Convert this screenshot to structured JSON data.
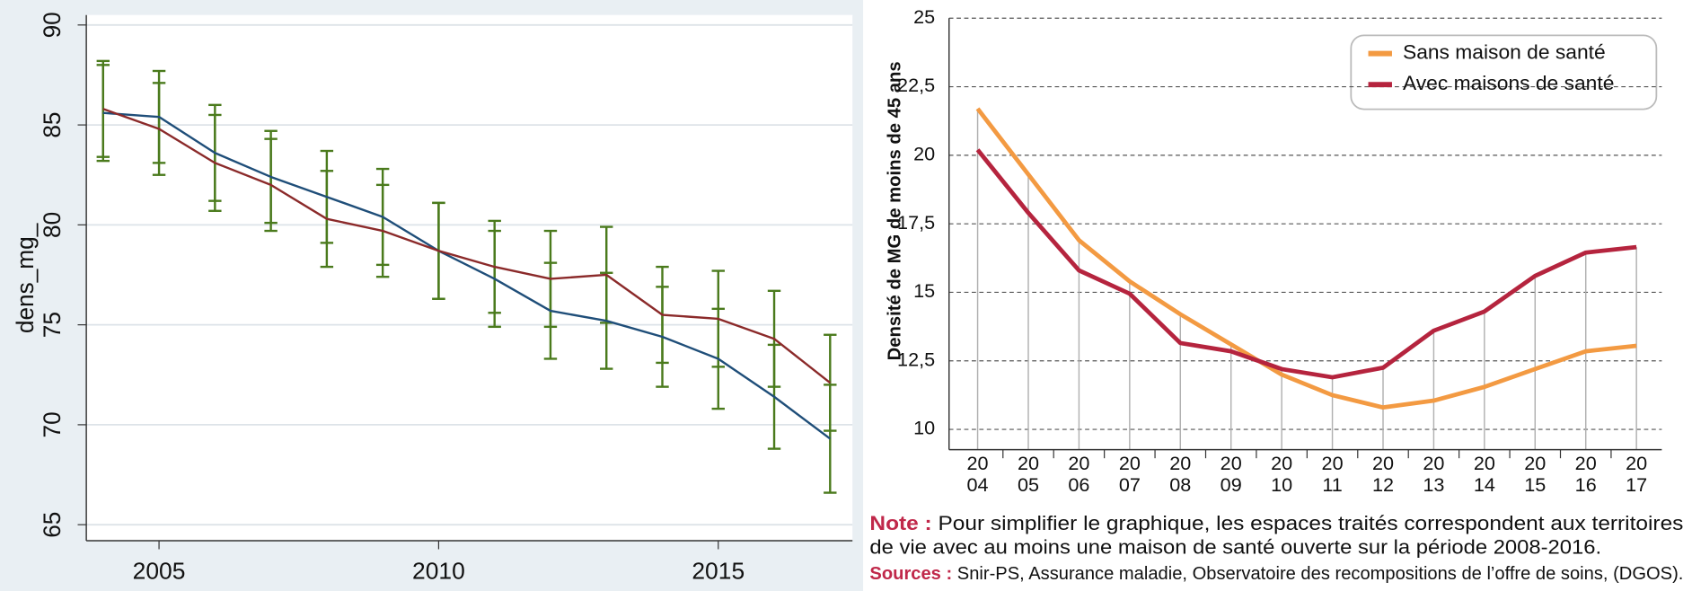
{
  "chart_data": [
    {
      "type": "line",
      "y_label": "dens_mg_",
      "x": [
        2004,
        2005,
        2006,
        2007,
        2008,
        2009,
        2010,
        2011,
        2012,
        2013,
        2014,
        2015,
        2016,
        2017
      ],
      "series": [
        {
          "color": "#1f4e79",
          "values": [
            85.6,
            85.4,
            83.6,
            82.4,
            81.4,
            80.4,
            78.7,
            77.3,
            75.7,
            75.2,
            74.4,
            73.3,
            71.4,
            69.3
          ],
          "errors": [
            2.4,
            2.3,
            2.4,
            2.3,
            2.3,
            2.4,
            2.4,
            2.4,
            2.4,
            2.4,
            2.5,
            2.5,
            2.6,
            2.7
          ]
        },
        {
          "color": "#8b2a2a",
          "values": [
            85.8,
            84.8,
            83.1,
            82.0,
            80.3,
            79.7,
            78.7,
            77.9,
            77.3,
            77.5,
            75.5,
            75.3,
            74.3,
            72.1
          ],
          "errors": [
            2.4,
            2.3,
            2.4,
            2.3,
            2.4,
            2.3,
            2.4,
            2.3,
            2.4,
            2.4,
            2.4,
            2.4,
            2.4,
            2.4
          ]
        }
      ],
      "error_color": "#4a7a1c",
      "xlim": [
        2003.7,
        2017.4
      ],
      "xticks": [
        2005,
        2010,
        2015
      ],
      "ylim": [
        64.2,
        90.5
      ],
      "yticks": [
        65,
        70,
        75,
        80,
        85,
        90
      ],
      "grid": true
    },
    {
      "type": "line",
      "y_label": "Densité de MG de moins de 45 ans",
      "categories": [
        [
          "20",
          "04"
        ],
        [
          "20",
          "05"
        ],
        [
          "20",
          "06"
        ],
        [
          "20",
          "07"
        ],
        [
          "20",
          "08"
        ],
        [
          "20",
          "09"
        ],
        [
          "20",
          "10"
        ],
        [
          "20",
          "11"
        ],
        [
          "20",
          "12"
        ],
        [
          "20",
          "13"
        ],
        [
          "20",
          "14"
        ],
        [
          "20",
          "15"
        ],
        [
          "20",
          "16"
        ],
        [
          "20",
          "17"
        ]
      ],
      "series": [
        {
          "name": "Sans maison de santé",
          "color": "#f39a42",
          "values": [
            21.7,
            19.3,
            16.9,
            15.4,
            14.2,
            13.1,
            12.0,
            11.25,
            10.8,
            11.05,
            11.55,
            12.2,
            12.85,
            13.05
          ]
        },
        {
          "name": "Avec maisons de santé",
          "color": "#b5243e",
          "values": [
            20.2,
            17.9,
            15.8,
            14.95,
            13.15,
            12.85,
            12.2,
            11.9,
            12.25,
            13.6,
            14.3,
            15.6,
            16.45,
            16.65
          ]
        }
      ],
      "ylim": [
        9.26,
        25
      ],
      "yticks": [
        10,
        {
          "value": 12.5,
          "label": "12,5"
        },
        15,
        {
          "value": 17.5,
          "label": "17,5"
        },
        20,
        {
          "value": 22.5,
          "label": "22,5"
        },
        25
      ],
      "grid": true,
      "grid_style": "dashed",
      "drop_lines": true,
      "legend": "upper right",
      "note": {
        "label": "Note :",
        "lines": [
          "Pour simplifier le graphique, les espaces traités correspondent aux territoires",
          "de vie avec au moins une maison de santé ouverte sur la période 2008-2016."
        ]
      },
      "sources": {
        "label": "Sources :",
        "text": "Snir-PS, Assurance maladie, Observatoire des recompositions de l’offre de soins, (DGOS)."
      }
    }
  ]
}
